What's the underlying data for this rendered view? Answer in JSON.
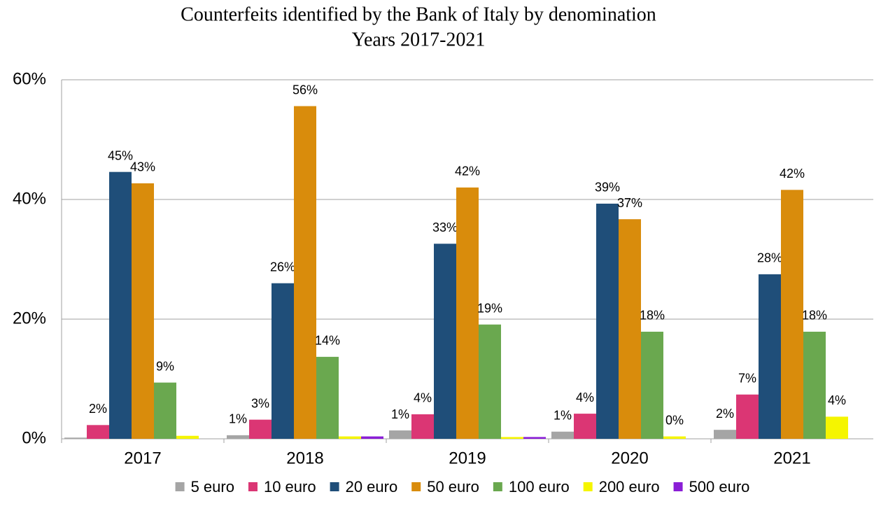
{
  "chart_data": {
    "type": "bar",
    "title": "Counterfeits identified by the Bank of Italy by denomination",
    "subtitle": "Years 2017-2021",
    "categories": [
      "2017",
      "2018",
      "2019",
      "2020",
      "2021"
    ],
    "series": [
      {
        "name": "5 euro",
        "color": "#a5a5a5",
        "values": [
          0.2,
          0.6,
          1.4,
          1.2,
          1.5
        ],
        "value_labels": [
          null,
          "1%",
          "1%",
          "1%",
          "2%"
        ]
      },
      {
        "name": "10 euro",
        "color": "#db3674",
        "values": [
          2.3,
          3.2,
          4.1,
          4.2,
          7.4
        ],
        "value_labels": [
          "2%",
          "3%",
          "4%",
          "4%",
          "7%"
        ]
      },
      {
        "name": "20 euro",
        "color": "#1f4e79",
        "values": [
          44.6,
          26.0,
          32.6,
          39.3,
          27.5
        ],
        "value_labels": [
          "45%",
          "26%",
          "33%",
          "39%",
          "28%"
        ]
      },
      {
        "name": "50 euro",
        "color": "#d98c0c",
        "values": [
          42.7,
          55.6,
          42.0,
          36.7,
          41.6
        ],
        "value_labels": [
          "43%",
          "56%",
          "42%",
          "37%",
          "42%"
        ]
      },
      {
        "name": "100 euro",
        "color": "#6aa84f",
        "values": [
          9.4,
          13.7,
          19.1,
          17.9,
          17.9
        ],
        "value_labels": [
          "9%",
          "14%",
          "19%",
          "18%",
          "18%"
        ]
      },
      {
        "name": "200 euro",
        "color": "#f5f500",
        "values": [
          0.5,
          0.4,
          0.3,
          0.4,
          3.7
        ],
        "value_labels": [
          null,
          null,
          null,
          "0%",
          "4%"
        ]
      },
      {
        "name": "500 euro",
        "color": "#8a1ed6",
        "values": [
          0,
          0.4,
          0.3,
          0,
          0
        ],
        "value_labels": [
          null,
          null,
          null,
          null,
          null
        ]
      }
    ],
    "ylim": [
      0,
      60
    ],
    "yticks": [
      {
        "value": 0,
        "label": "0%"
      },
      {
        "value": 20,
        "label": "20%"
      },
      {
        "value": 40,
        "label": "40%"
      },
      {
        "value": 60,
        "label": "60%"
      }
    ],
    "grid": true,
    "legend": "bottom"
  }
}
